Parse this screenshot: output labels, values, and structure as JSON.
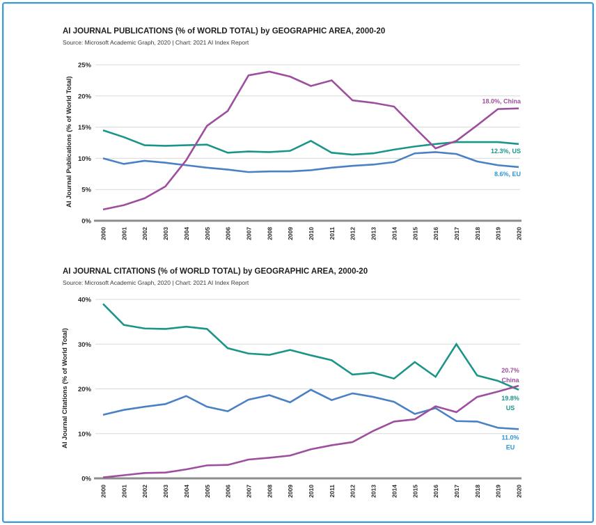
{
  "page": {
    "border_color": "#3e9ad2",
    "background": "#ffffff"
  },
  "chart_data": [
    {
      "type": "line",
      "title": "AI JOURNAL PUBLICATIONS (% of WORLD TOTAL) by GEOGRAPHIC AREA, 2000-20",
      "source": "Source: Microsoft Academic Graph, 2020 | Chart: 2021 AI Index Report",
      "ylabel": "AI Journal Publications (% of World Total)",
      "xlabel": "",
      "x": [
        "2000",
        "2001",
        "2002",
        "2003",
        "2004",
        "2005",
        "2006",
        "2007",
        "2008",
        "2009",
        "2010",
        "2011",
        "2012",
        "2013",
        "2014",
        "2015",
        "2016",
        "2017",
        "2018",
        "2019",
        "2020"
      ],
      "ylim": [
        0,
        25
      ],
      "ytick_step": 5,
      "ytick_suffix": "%",
      "grid": true,
      "legend": "end-of-line-labels",
      "series": [
        {
          "name": "EU",
          "color": "#4a80c4",
          "label_color": "#2d96d4",
          "end_label": [
            "8.6%, EU"
          ],
          "label_position": "below",
          "label_layout": "inline",
          "values": [
            10.0,
            9.1,
            9.6,
            9.3,
            8.9,
            8.5,
            8.2,
            7.8,
            7.9,
            7.9,
            8.1,
            8.5,
            8.8,
            9.0,
            9.4,
            10.8,
            11.0,
            10.7,
            9.5,
            8.9,
            8.6
          ]
        },
        {
          "name": "US",
          "color": "#1b958a",
          "label_color": "#1b958a",
          "end_label": [
            "12.3%, US"
          ],
          "label_position": "below",
          "label_layout": "inline",
          "values": [
            14.5,
            13.4,
            12.1,
            12.0,
            12.1,
            12.2,
            10.9,
            11.1,
            11.0,
            11.2,
            12.8,
            10.9,
            10.6,
            10.8,
            11.4,
            11.9,
            12.3,
            12.6,
            12.6,
            12.6,
            12.3
          ]
        },
        {
          "name": "China",
          "color": "#9d4e9e",
          "label_color": "#9d4e9e",
          "end_label": [
            "18.0%, China"
          ],
          "label_position": "above",
          "label_layout": "inline",
          "values": [
            1.8,
            2.5,
            3.6,
            5.5,
            9.7,
            15.2,
            17.6,
            23.3,
            23.9,
            23.1,
            21.6,
            22.5,
            19.3,
            18.9,
            18.3,
            14.9,
            11.6,
            12.8,
            15.3,
            17.9,
            18.0
          ]
        }
      ]
    },
    {
      "type": "line",
      "title": "AI JOURNAL CITATIONS (% of WORLD TOTAL) by GEOGRAPHIC AREA, 2000-20",
      "source": "Source: Microsoft Academic Graph, 2020 | Chart: 2021 AI Index Report",
      "ylabel": "AI Journal Citations (% of World Total)",
      "xlabel": "",
      "x": [
        "2000",
        "2001",
        "2002",
        "2003",
        "2004",
        "2005",
        "2006",
        "2007",
        "2008",
        "2009",
        "2010",
        "2011",
        "2012",
        "2013",
        "2014",
        "2015",
        "2016",
        "2017",
        "2018",
        "2019",
        "2020"
      ],
      "ylim": [
        0,
        40
      ],
      "ytick_step": 10,
      "ytick_suffix": "%",
      "grid": true,
      "legend": "end-of-line-labels",
      "series": [
        {
          "name": "EU",
          "color": "#4a80c4",
          "label_color": "#2d96d4",
          "end_label": [
            "11.0%",
            "EU"
          ],
          "label_position": "below",
          "label_layout": "stacked",
          "values": [
            14.2,
            15.3,
            16.0,
            16.6,
            18.4,
            16.0,
            15.0,
            17.6,
            18.6,
            17.0,
            19.8,
            17.5,
            19.0,
            18.2,
            17.1,
            14.4,
            15.7,
            12.8,
            12.7,
            11.3,
            11.0
          ]
        },
        {
          "name": "US",
          "color": "#1b958a",
          "label_color": "#1b958a",
          "end_label": [
            "19.8%",
            "US"
          ],
          "label_position": "below",
          "label_layout": "stacked",
          "values": [
            39.0,
            34.3,
            33.5,
            33.4,
            33.9,
            33.4,
            29.1,
            27.9,
            27.6,
            28.7,
            27.5,
            26.4,
            23.2,
            23.6,
            22.3,
            26.0,
            22.7,
            30.0,
            23.0,
            21.8,
            19.8
          ]
        },
        {
          "name": "China",
          "color": "#9d4e9e",
          "label_color": "#9d4e9e",
          "end_label": [
            "20.7%",
            "China"
          ],
          "label_position": "above",
          "label_layout": "stacked",
          "values": [
            0.2,
            0.7,
            1.2,
            1.3,
            2.0,
            2.9,
            3.0,
            4.2,
            4.6,
            5.1,
            6.5,
            7.4,
            8.1,
            10.6,
            12.7,
            13.2,
            16.1,
            14.8,
            18.2,
            19.4,
            20.7
          ]
        }
      ]
    }
  ]
}
